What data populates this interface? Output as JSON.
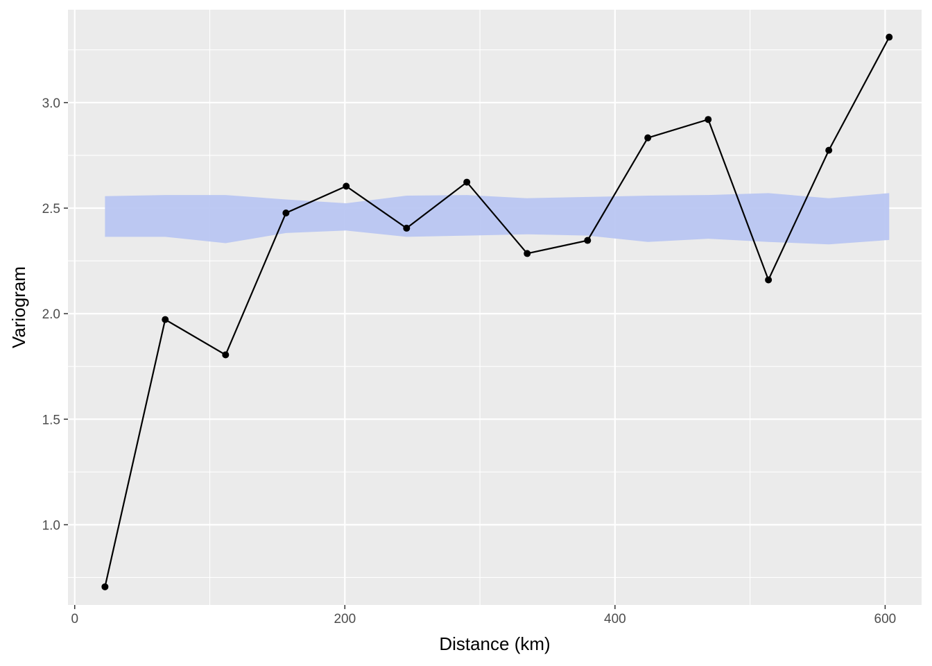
{
  "chart_data": {
    "type": "line",
    "xlabel": "Distance (km)",
    "ylabel": "Variogram",
    "xlim": [
      -5,
      627
    ],
    "ylim": [
      0.62,
      3.44
    ],
    "x_ticks": [
      0,
      200,
      400,
      600
    ],
    "x_tick_labels": [
      "0",
      "200",
      "400",
      "600"
    ],
    "x_minor_ticks": [
      100,
      300,
      500
    ],
    "y_ticks": [
      1.0,
      1.5,
      2.0,
      2.5,
      3.0
    ],
    "y_tick_labels": [
      "1.0",
      "1.5",
      "2.0",
      "2.5",
      "3.0"
    ],
    "y_minor_ticks": [
      0.75,
      1.25,
      1.75,
      2.25,
      2.75,
      3.25
    ],
    "grid": true,
    "legend": "none",
    "series": [
      {
        "x": [
          22.4,
          67.0,
          111.7,
          156.4,
          201.0,
          245.7,
          290.3,
          335.0,
          379.7,
          424.3,
          469.0,
          513.6,
          558.3,
          603.0
        ],
        "y": [
          0.706,
          1.972,
          1.805,
          2.477,
          2.604,
          2.405,
          2.623,
          2.285,
          2.347,
          2.833,
          2.92,
          2.16,
          2.774,
          3.31
        ]
      }
    ],
    "band": {
      "x": [
        22.4,
        67.0,
        111.7,
        156.4,
        201.0,
        245.7,
        290.3,
        335.0,
        379.7,
        424.3,
        469.0,
        513.6,
        558.3,
        603.0
      ],
      "upper": [
        2.557,
        2.562,
        2.562,
        2.541,
        2.523,
        2.559,
        2.562,
        2.547,
        2.553,
        2.559,
        2.562,
        2.571,
        2.547,
        2.571
      ],
      "lower": [
        2.364,
        2.364,
        2.334,
        2.382,
        2.394,
        2.364,
        2.37,
        2.376,
        2.37,
        2.34,
        2.355,
        2.34,
        2.328,
        2.349
      ]
    },
    "colors": {
      "panel": "#ebebeb",
      "grid": "#ffffff",
      "band": "#b9c6f2",
      "line": "#000000",
      "tick_text": "#4d4d4d",
      "tick_mark": "#333333"
    }
  }
}
